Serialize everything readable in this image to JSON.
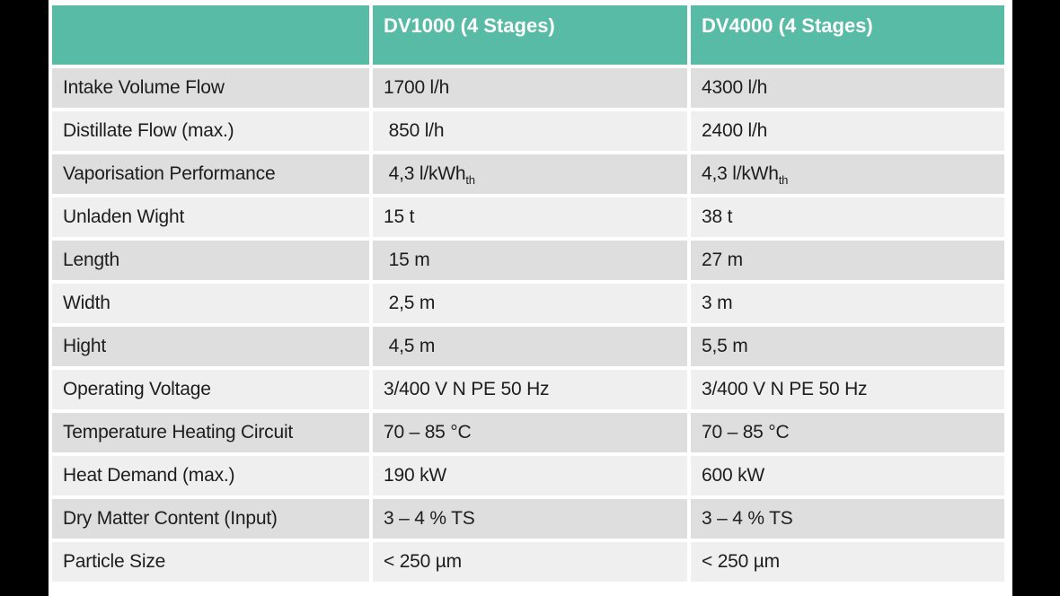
{
  "colors": {
    "stage_bg": "#000000",
    "page_bg": "#ffffff",
    "header_bg": "#57bba5",
    "header_text": "#ffffff",
    "row_odd": "#dedede",
    "row_even": "#efefef",
    "body_text": "#1d1d1b"
  },
  "table": {
    "header": {
      "col1": "",
      "col2": "DV1000 (4 Stages)",
      "col3": "DV4000 (4 Stages)"
    },
    "rows": [
      {
        "label": "Intake Volume Flow",
        "dv1000": "1700 l/h",
        "dv4000": "4300 l/h"
      },
      {
        "label": "Distillate Flow (max.)",
        "dv1000": " 850 l/h",
        "dv4000": "2400 l/h"
      },
      {
        "label": "Vaporisation Performance",
        "dv1000": " 4,3 l/kWh",
        "dv1000_sub": "th",
        "dv4000": "4,3 l/kWh",
        "dv4000_sub": "th"
      },
      {
        "label": "Unladen Wight",
        "dv1000": "15 t",
        "dv4000": "38 t"
      },
      {
        "label": "Length",
        "dv1000": " 15 m",
        "dv4000": "27 m"
      },
      {
        "label": "Width",
        "dv1000": " 2,5 m",
        "dv4000": "3 m"
      },
      {
        "label": "Hight",
        "dv1000": " 4,5 m",
        "dv4000": "5,5 m"
      },
      {
        "label": "Operating Voltage",
        "dv1000": "3/400 V N PE 50 Hz",
        "dv4000": "3/400 V N PE 50 Hz"
      },
      {
        "label": "Temperature Heating Circuit",
        "dv1000": "70 – 85 °C",
        "dv4000": "70 – 85 °C"
      },
      {
        "label": "Heat Demand (max.)",
        "dv1000": "190 kW",
        "dv4000": "600 kW"
      },
      {
        "label": "Dry Matter Content (Input)",
        "dv1000": "3 – 4 % TS",
        "dv4000": "3 – 4 % TS"
      },
      {
        "label": "Particle Size",
        "dv1000": "< 250 µm",
        "dv4000": "< 250 µm"
      }
    ]
  }
}
